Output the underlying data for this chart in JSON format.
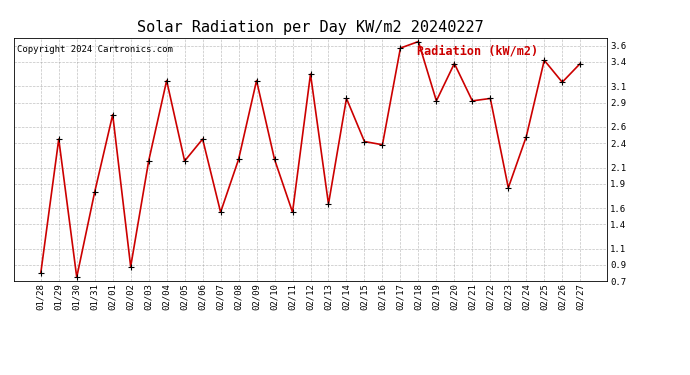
{
  "title": "Solar Radiation per Day KW/m2 20240227",
  "copyright": "Copyright 2024 Cartronics.com",
  "legend_label": "Radiation (kW/m2)",
  "dates": [
    "01/28",
    "01/29",
    "01/30",
    "01/31",
    "02/01",
    "02/02",
    "02/03",
    "02/04",
    "02/05",
    "02/06",
    "02/07",
    "02/08",
    "02/09",
    "02/10",
    "02/11",
    "02/12",
    "02/13",
    "02/14",
    "02/15",
    "02/16",
    "02/17",
    "02/18",
    "02/19",
    "02/20",
    "02/21",
    "02/22",
    "02/23",
    "02/24",
    "02/25",
    "02/26",
    "02/27"
  ],
  "values": [
    0.8,
    2.45,
    0.75,
    1.8,
    2.75,
    0.88,
    2.18,
    3.17,
    2.18,
    2.45,
    1.55,
    2.2,
    3.17,
    2.2,
    1.55,
    3.25,
    1.65,
    2.95,
    2.42,
    2.38,
    3.57,
    3.65,
    2.92,
    3.38,
    2.92,
    2.95,
    1.85,
    2.48,
    3.42,
    3.15,
    3.38
  ],
  "ylim": [
    0.7,
    3.7
  ],
  "yticks": [
    0.7,
    0.9,
    1.1,
    1.4,
    1.6,
    1.9,
    2.1,
    2.4,
    2.6,
    2.9,
    3.1,
    3.4,
    3.6
  ],
  "ytick_labels": [
    "0.7",
    "0.9",
    "1.1",
    "1.4",
    "1.6",
    "1.9",
    "2.1",
    "2.4",
    "2.6",
    "2.9",
    "3.1",
    "3.4",
    "3.6"
  ],
  "line_color": "#cc0000",
  "marker_color": "#000000",
  "bg_color": "#ffffff",
  "grid_color": "#999999",
  "title_color": "#000000",
  "copyright_color": "#000000",
  "legend_color": "#cc0000",
  "title_fontsize": 11,
  "copyright_fontsize": 6.5,
  "legend_fontsize": 8.5,
  "tick_fontsize": 6.5,
  "figwidth": 6.9,
  "figheight": 3.75,
  "dpi": 100
}
